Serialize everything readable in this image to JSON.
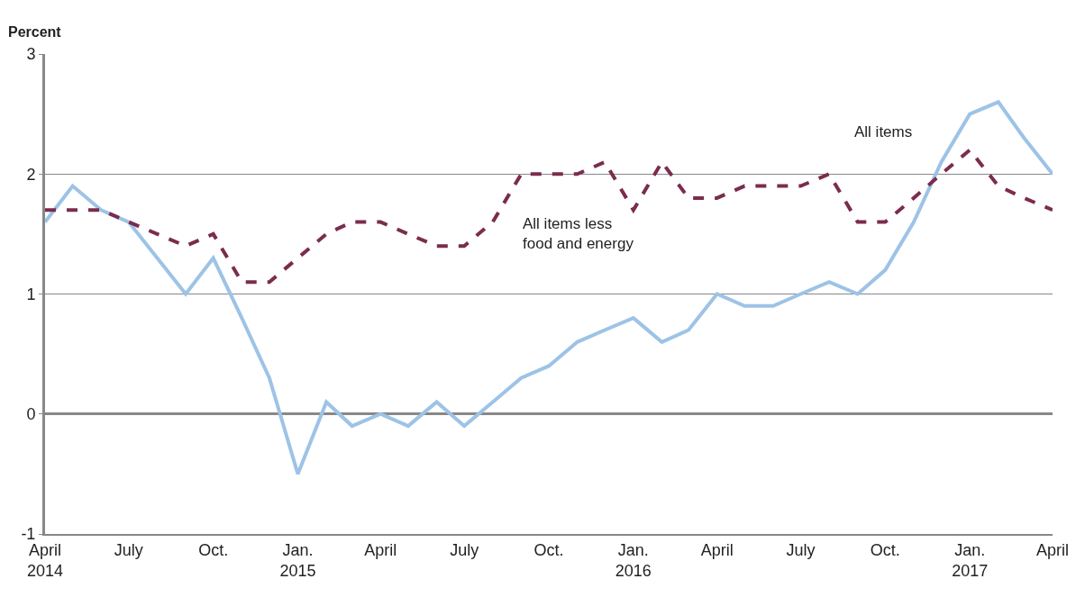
{
  "chart_data": {
    "type": "line",
    "ylabel": "Percent",
    "x": [
      "2014-04",
      "2014-05",
      "2014-06",
      "2014-07",
      "2014-08",
      "2014-09",
      "2014-10",
      "2014-11",
      "2014-12",
      "2015-01",
      "2015-02",
      "2015-03",
      "2015-04",
      "2015-05",
      "2015-06",
      "2015-07",
      "2015-08",
      "2015-09",
      "2015-10",
      "2015-11",
      "2015-12",
      "2016-01",
      "2016-02",
      "2016-03",
      "2016-04",
      "2016-05",
      "2016-06",
      "2016-07",
      "2016-08",
      "2016-09",
      "2016-10",
      "2016-11",
      "2016-12",
      "2017-01",
      "2017-02",
      "2017-03",
      "2017-04"
    ],
    "series": [
      {
        "name": "All items",
        "color": "#9dc3e6",
        "line_style": "solid",
        "values": [
          1.6,
          1.9,
          1.7,
          1.6,
          1.3,
          1.0,
          1.3,
          0.8,
          0.3,
          -0.5,
          0.1,
          -0.1,
          0.0,
          -0.1,
          0.1,
          -0.1,
          0.1,
          0.3,
          0.4,
          0.6,
          0.7,
          0.8,
          0.6,
          0.7,
          1.0,
          0.9,
          0.9,
          1.0,
          1.1,
          1.0,
          1.2,
          1.6,
          2.1,
          2.5,
          2.6,
          2.3,
          2.0
        ]
      },
      {
        "name": "All items less food and energy",
        "color": "#7b2c4e",
        "line_style": "dashed",
        "values": [
          1.7,
          1.7,
          1.7,
          1.6,
          1.5,
          1.4,
          1.5,
          1.1,
          1.1,
          1.3,
          1.5,
          1.6,
          1.6,
          1.5,
          1.4,
          1.4,
          1.6,
          2.0,
          2.0,
          2.0,
          2.1,
          1.7,
          2.1,
          1.8,
          1.8,
          1.9,
          1.9,
          1.9,
          2.0,
          1.6,
          1.6,
          1.8,
          2.0,
          2.2,
          1.9,
          1.8,
          1.7
        ]
      }
    ],
    "xlim": [
      "2014-04",
      "2017-04"
    ],
    "xticks": [
      {
        "value": "2014-04",
        "label": "April\n2014"
      },
      {
        "value": "2014-07",
        "label": "July"
      },
      {
        "value": "2014-10",
        "label": "Oct."
      },
      {
        "value": "2015-01",
        "label": "Jan.\n2015"
      },
      {
        "value": "2015-04",
        "label": "April"
      },
      {
        "value": "2015-07",
        "label": "July"
      },
      {
        "value": "2015-10",
        "label": "Oct."
      },
      {
        "value": "2016-01",
        "label": "Jan.\n2016"
      },
      {
        "value": "2016-04",
        "label": "April"
      },
      {
        "value": "2016-07",
        "label": "July"
      },
      {
        "value": "2016-10",
        "label": "Oct."
      },
      {
        "value": "2017-01",
        "label": "Jan.\n2017"
      },
      {
        "value": "2017-04",
        "label": "April"
      }
    ],
    "ylim": [
      -1,
      3
    ],
    "yticks": [
      -1,
      0,
      1,
      2,
      3
    ],
    "grid": "y",
    "legend": false,
    "marker": "none"
  }
}
